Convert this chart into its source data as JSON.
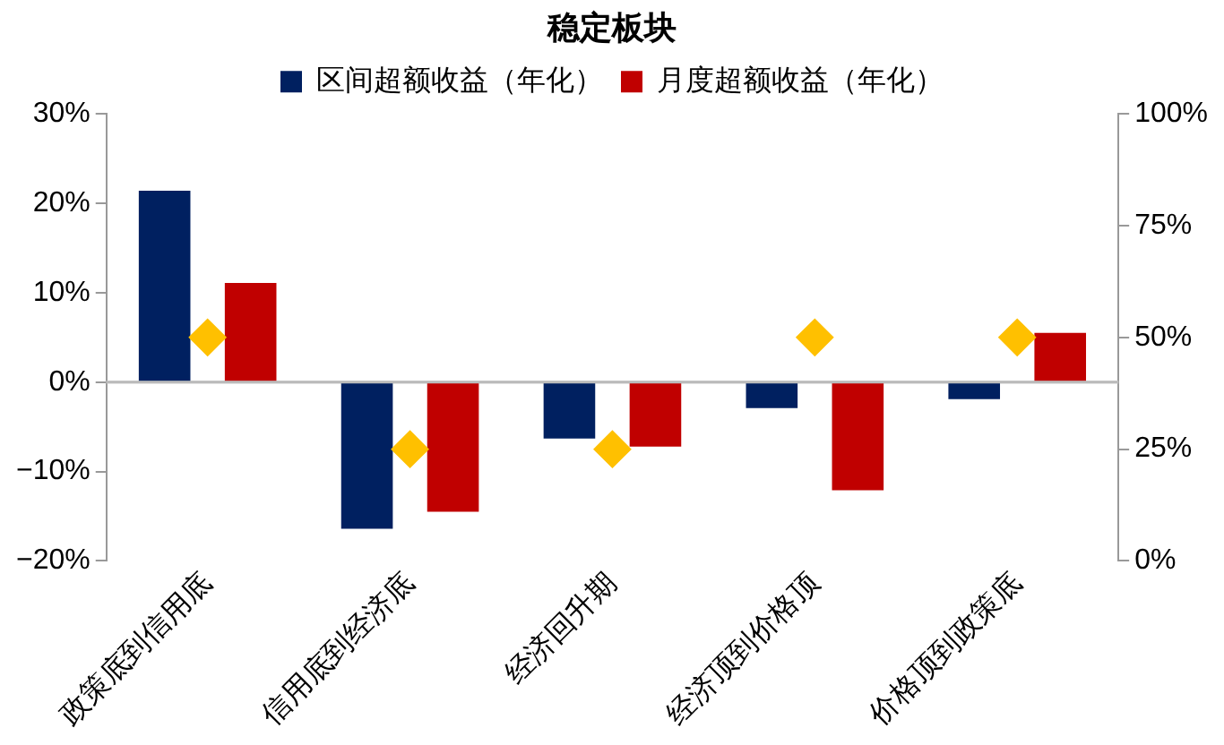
{
  "chart_data": {
    "type": "bar",
    "title": "稳定板块",
    "categories": [
      "政策底到信用底",
      "信用底到经济底",
      "经济回升期",
      "经济顶到价格顶",
      "价格顶到政策底"
    ],
    "series": [
      {
        "name": "区间超额收益（年化）",
        "color": "#002060",
        "values": [
          21.4,
          -16.4,
          -6.3,
          -2.9,
          -1.9
        ]
      },
      {
        "name": "月度超额收益（年化）",
        "color": "#c00000",
        "values": [
          11.1,
          -14.5,
          -7.2,
          -12.1,
          5.5
        ]
      },
      {
        "type": "scatter",
        "axis": "y2",
        "color": "#ffc000",
        "marker": "diamond",
        "x": [
          "政策底到信用底",
          "信用底到经济底",
          "经济回升期",
          "经济顶到价格顶",
          "价格顶到政策底"
        ],
        "values": [
          50,
          25,
          25,
          50,
          50
        ]
      }
    ],
    "ylim": [
      -20,
      30
    ],
    "yticks": [
      {
        "value": -20,
        "label": "−20%"
      },
      {
        "value": -10,
        "label": "−10%"
      },
      {
        "value": 0,
        "label": "0%"
      },
      {
        "value": 10,
        "label": "10%"
      },
      {
        "value": 20,
        "label": "20%"
      },
      {
        "value": 30,
        "label": "30%"
      }
    ],
    "y2lim": [
      0,
      100
    ],
    "y2ticks": [
      {
        "value": 0,
        "label": "0%"
      },
      {
        "value": 25,
        "label": "25%"
      },
      {
        "value": 50,
        "label": "50%"
      },
      {
        "value": 75,
        "label": "75%"
      },
      {
        "value": 100,
        "label": "100%"
      }
    ],
    "grid": false,
    "legend": "top"
  }
}
